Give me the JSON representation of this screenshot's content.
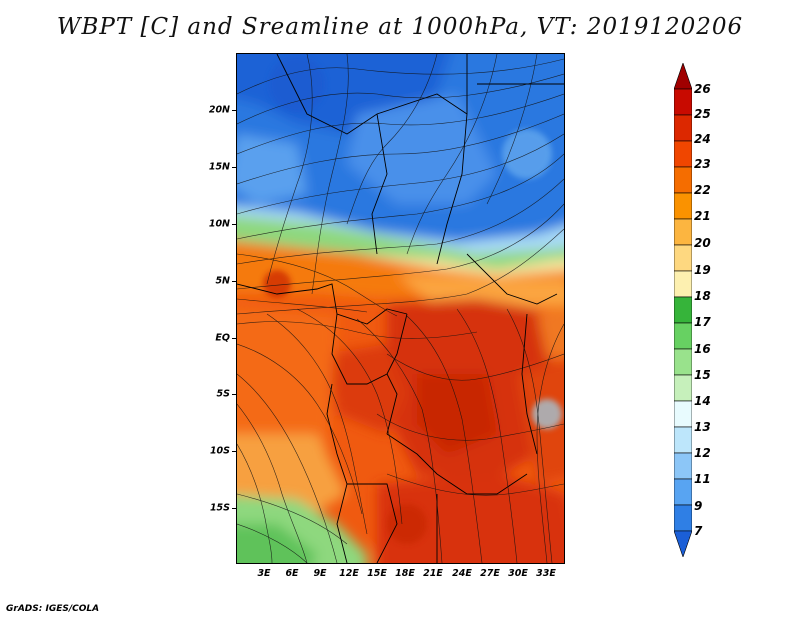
{
  "title": "WBPT [C] and Sreamline at 1000hPa, VT: 2019120206",
  "footer": "GrADS: IGES/COLA",
  "map": {
    "y_labels": [
      "20N",
      "15N",
      "10N",
      "5N",
      "EQ",
      "5S",
      "10S",
      "15S"
    ],
    "x_labels": [
      "3E",
      "6E",
      "9E",
      "12E",
      "15E",
      "18E",
      "21E",
      "24E",
      "27E",
      "30E",
      "33E"
    ]
  },
  "colorbar": {
    "labels": [
      "26",
      "25",
      "24",
      "23",
      "22",
      "21",
      "20",
      "19",
      "18",
      "17",
      "16",
      "15",
      "14",
      "13",
      "12",
      "11",
      "9",
      "7"
    ],
    "colors": [
      "#a00000",
      "#c80a00",
      "#dc2800",
      "#f04600",
      "#f56d00",
      "#fa9200",
      "#fcb540",
      "#fed880",
      "#fdf0b0",
      "#36b43a",
      "#67d162",
      "#99e28c",
      "#c6f0bb",
      "#e8fbfe",
      "#bde6fb",
      "#8cc6f7",
      "#58a4f2",
      "#2f7fe5",
      "#1b5fd7"
    ]
  }
}
